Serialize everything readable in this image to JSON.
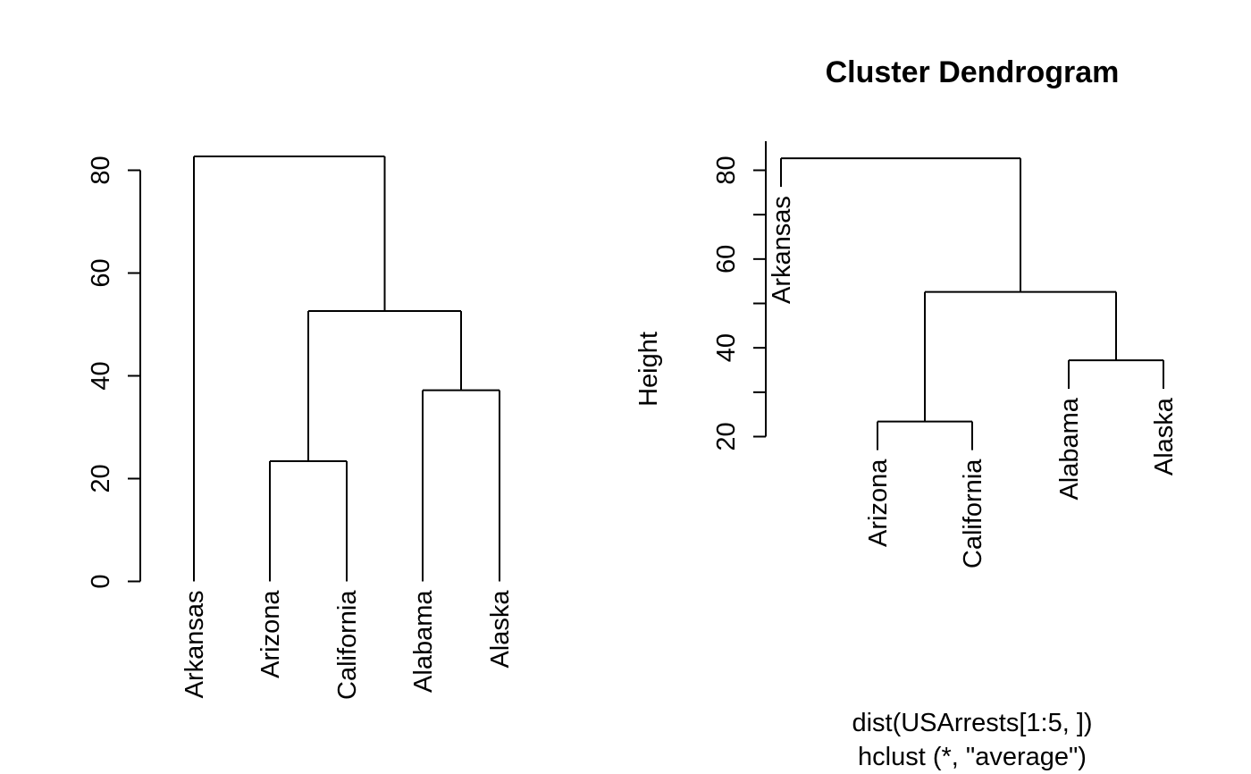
{
  "chart_data": [
    {
      "type": "dendrogram",
      "title": "",
      "ylabel": "",
      "xlabel": "",
      "sub": "",
      "ylim": [
        0,
        80
      ],
      "yticks": [
        0,
        20,
        40,
        60,
        80
      ],
      "hang": false,
      "leaves": [
        "Arkansas",
        "Arizona",
        "California",
        "Alabama",
        "Alaska"
      ],
      "merges": [
        {
          "a": "Arizona",
          "b": "California",
          "height": 23.4
        },
        {
          "a": "Alabama",
          "b": "Alaska",
          "height": 37.2
        },
        {
          "a": "Arizona+California",
          "b": "Alabama+Alaska",
          "height": 52.6
        },
        {
          "a": "Arkansas",
          "b": "Arizona+California+Alabama+Alaska",
          "height": 82.7
        }
      ]
    },
    {
      "type": "dendrogram",
      "title": "Cluster Dendrogram",
      "ylabel": "Height",
      "xlabel": "dist(USArrests[1:5, ])",
      "sub": "hclust (*, \"average\")",
      "ylim": [
        20,
        80
      ],
      "yticks": [
        20,
        40,
        60,
        80
      ],
      "hang": true,
      "leaves": [
        "Arkansas",
        "Arizona",
        "California",
        "Alabama",
        "Alaska"
      ],
      "merges": [
        {
          "a": "Arizona",
          "b": "California",
          "height": 23.4
        },
        {
          "a": "Alabama",
          "b": "Alaska",
          "height": 37.2
        },
        {
          "a": "Arizona+California",
          "b": "Alabama+Alaska",
          "height": 52.6
        },
        {
          "a": "Arkansas",
          "b": "Arizona+California+Alabama+Alaska",
          "height": 82.7
        }
      ]
    }
  ]
}
